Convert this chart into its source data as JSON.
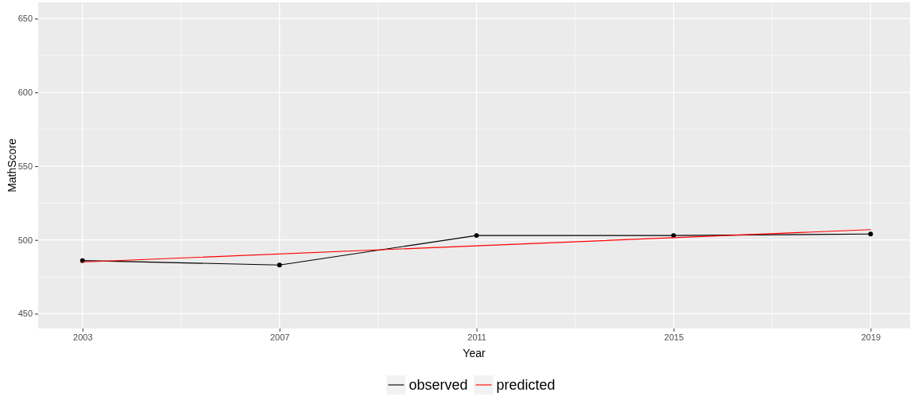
{
  "chart_data": {
    "type": "line",
    "xlabel": "Year",
    "ylabel": "MathScore",
    "x": [
      2003,
      2007,
      2011,
      2015,
      2019
    ],
    "series": [
      {
        "name": "observed",
        "color": "#000000",
        "values": [
          486,
          483,
          503,
          503,
          504
        ],
        "marker": "circle"
      },
      {
        "name": "predicted",
        "color": "#ff0000",
        "x": [
          2003,
          2019
        ],
        "values": [
          485,
          507
        ],
        "marker": "none"
      }
    ],
    "xlim": [
      2002.1,
      2019.8
    ],
    "ylim": [
      440,
      661
    ],
    "xticks": [
      2003,
      2007,
      2011,
      2015,
      2019
    ],
    "yticks": [
      450,
      500,
      550,
      600,
      650
    ],
    "grid": true,
    "legend": "bottom"
  }
}
